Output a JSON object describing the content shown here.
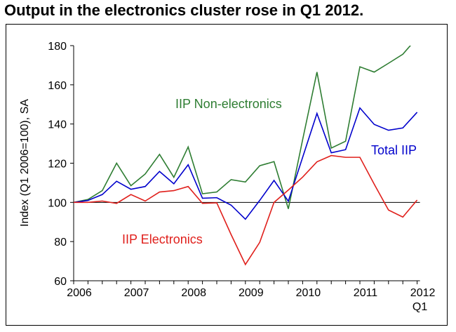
{
  "chart_data": {
    "type": "line",
    "title": "Output in the electronics cluster rose in Q1 2012.",
    "ylabel": "Index (Q1 2006=100), SA",
    "xlabel": "",
    "ylim": [
      60,
      180
    ],
    "yticks": [
      60,
      80,
      100,
      120,
      140,
      160,
      180
    ],
    "xtick_labels": [
      "2006",
      "2007",
      "2008",
      "2009",
      "2010",
      "2011",
      "2012"
    ],
    "last_tick_sublabel": "Q1",
    "reference_line": 100,
    "x": [
      "2006Q1",
      "2006Q2",
      "2006Q3",
      "2006Q4",
      "2007Q1",
      "2007Q2",
      "2007Q3",
      "2007Q4",
      "2008Q1",
      "2008Q2",
      "2008Q3",
      "2008Q4",
      "2009Q1",
      "2009Q2",
      "2009Q3",
      "2009Q4",
      "2010Q1",
      "2010Q2",
      "2010Q3",
      "2010Q4",
      "2011Q1",
      "2011Q2",
      "2011Q3",
      "2011Q4",
      "2012Q1"
    ],
    "series": [
      {
        "name": "IIP Non-electronics",
        "color": "#2e7d32",
        "values": [
          100,
          101.5,
          106,
          120,
          108.5,
          114.5,
          124.5,
          112.8,
          128.3,
          104.4,
          105.3,
          111.6,
          110.4,
          118.7,
          120.8,
          96.7,
          132,
          166.5,
          127.7,
          131.2,
          169.2,
          166.5,
          171,
          175.6,
          184
        ]
      },
      {
        "name": "Total IIP",
        "color": "#0000cc",
        "values": [
          100,
          101,
          104,
          110.8,
          106.7,
          108.1,
          115.8,
          109.5,
          119.2,
          102.1,
          102.4,
          98.6,
          91.4,
          101,
          111.2,
          100.6,
          123,
          145.4,
          125.3,
          126.9,
          148.2,
          139.8,
          136.8,
          138,
          146
        ]
      },
      {
        "name": "IIP Electronics",
        "color": "#e0201c",
        "values": [
          100,
          100,
          100.7,
          99.5,
          104,
          100.7,
          105.3,
          106,
          108.1,
          99.5,
          99.8,
          83.6,
          68.3,
          79.6,
          100,
          106.3,
          112.9,
          120.7,
          123.9,
          123,
          123,
          109.3,
          96.1,
          92.5,
          101.2
        ]
      }
    ]
  }
}
